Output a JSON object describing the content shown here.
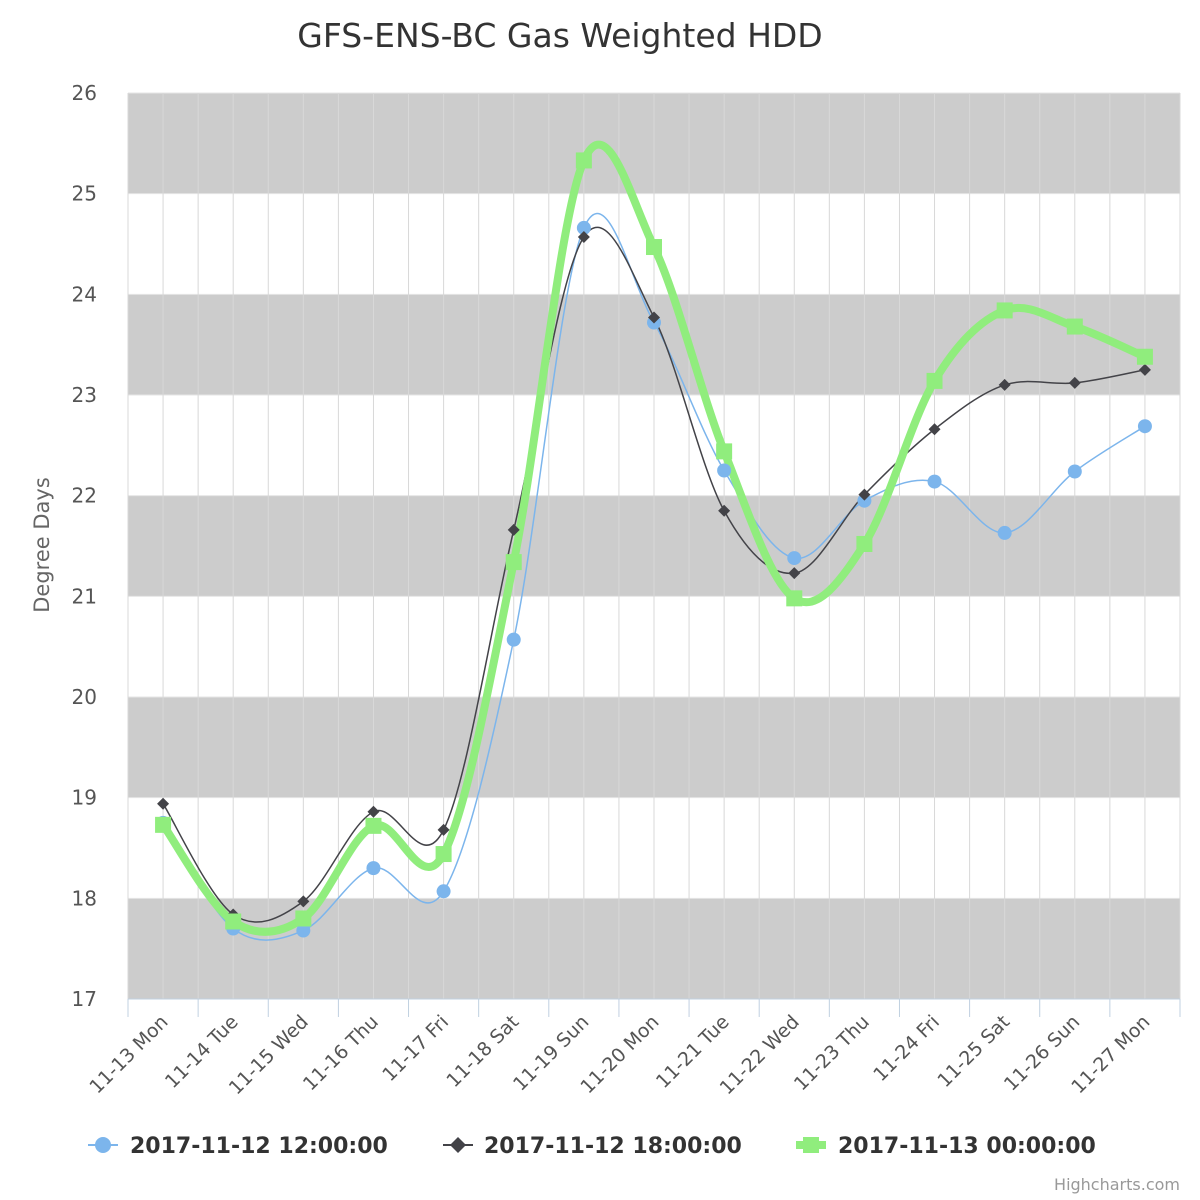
{
  "chart_data": {
    "type": "line",
    "title": "GFS-ENS-BC Gas Weighted HDD",
    "ylabel": "Degree Days",
    "xlabel": "",
    "ylim": [
      17,
      26
    ],
    "yticks": [
      "17",
      "18",
      "19",
      "20",
      "21",
      "22",
      "23",
      "24",
      "25",
      "26"
    ],
    "categories": [
      "11-13 Mon",
      "11-14 Tue",
      "11-15 Wed",
      "11-16 Thu",
      "11-17 Fri",
      "11-18 Sat",
      "11-19 Sun",
      "11-20 Mon",
      "11-21 Tue",
      "11-22 Wed",
      "11-23 Thu",
      "11-24 Fri",
      "11-25 Sat",
      "11-26 Sun",
      "11-27 Mon"
    ],
    "grid": true,
    "alternate_bands": true,
    "legend_position": "bottom",
    "series": [
      {
        "name": "2017-11-12 12:00:00",
        "marker": "circle",
        "color": "#7cb5ec",
        "values": [
          18.75,
          17.7,
          17.68,
          18.3,
          18.07,
          20.57,
          24.66,
          23.72,
          22.25,
          21.38,
          21.95,
          22.14,
          21.63,
          22.24,
          22.69
        ]
      },
      {
        "name": "2017-11-12 18:00:00",
        "marker": "diamond",
        "color": "#434348",
        "values": [
          18.94,
          17.84,
          17.97,
          18.86,
          18.68,
          21.66,
          24.57,
          23.77,
          21.85,
          21.23,
          22.01,
          22.66,
          23.1,
          23.12,
          23.25
        ]
      },
      {
        "name": "2017-11-13 00:00:00",
        "marker": "square",
        "color": "#90ed7d",
        "values": [
          18.73,
          17.77,
          17.8,
          18.72,
          18.44,
          21.34,
          25.33,
          24.47,
          22.44,
          20.98,
          21.52,
          23.14,
          23.84,
          23.68,
          23.38
        ]
      }
    ]
  },
  "colors": {
    "band": "#cccccc",
    "grid": "#d8d8d8",
    "axis": "#c0d0e0"
  },
  "credits": "Highcharts.com"
}
